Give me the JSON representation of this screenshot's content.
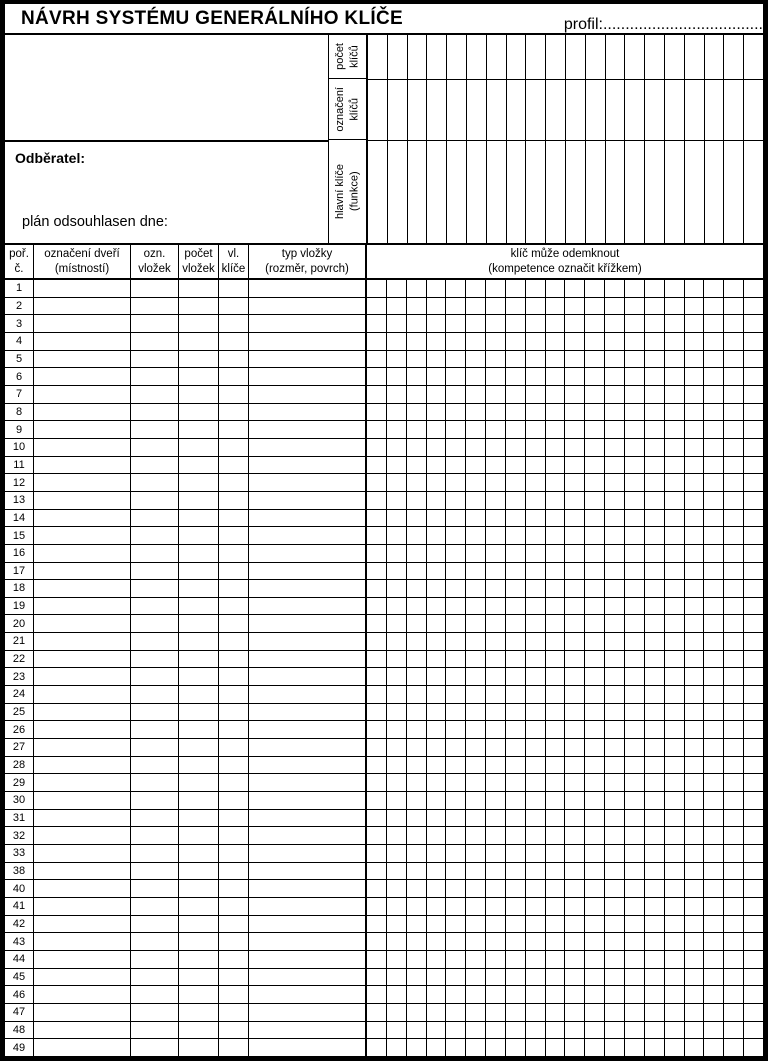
{
  "page": {
    "title": "NÁVRH SYSTÉMU GENERÁLNÍHO KLÍČE",
    "profil_label": "profil:",
    "profil_dots": "...................................."
  },
  "top_section": {
    "odberatel_label": "Odběratel:",
    "plan_label": "plán odsouhlasen dne:",
    "rotated_labels": [
      "počet\nklíčů",
      "označení\nklíčů",
      "hlavní klíče\n(funkce)"
    ],
    "key_columns": 20,
    "grid_rows": 3
  },
  "table": {
    "headers": [
      "poř.\nč.",
      "označení dveří\n(místností)",
      "ozn.\nvložek",
      "počet\nvložek",
      "vl.\nklíče",
      "typ vložky\n(rozměr, povrch)"
    ],
    "key_header": "klíč může odemknout\n(kompetence označit křížkem)",
    "key_columns": 20,
    "row_numbers": [
      "1",
      "2",
      "3",
      "4",
      "5",
      "6",
      "7",
      "8",
      "9",
      "10",
      "11",
      "12",
      "13",
      "14",
      "15",
      "16",
      "17",
      "18",
      "19",
      "20",
      "21",
      "22",
      "23",
      "24",
      "25",
      "26",
      "27",
      "28",
      "29",
      "30",
      "31",
      "32",
      "33",
      "38",
      "40",
      "41",
      "42",
      "43",
      "44",
      "45",
      "46",
      "47",
      "48",
      "49"
    ],
    "cell_values": []
  },
  "colors": {
    "line": "#000000",
    "background": "#ffffff",
    "text": "#000000"
  }
}
